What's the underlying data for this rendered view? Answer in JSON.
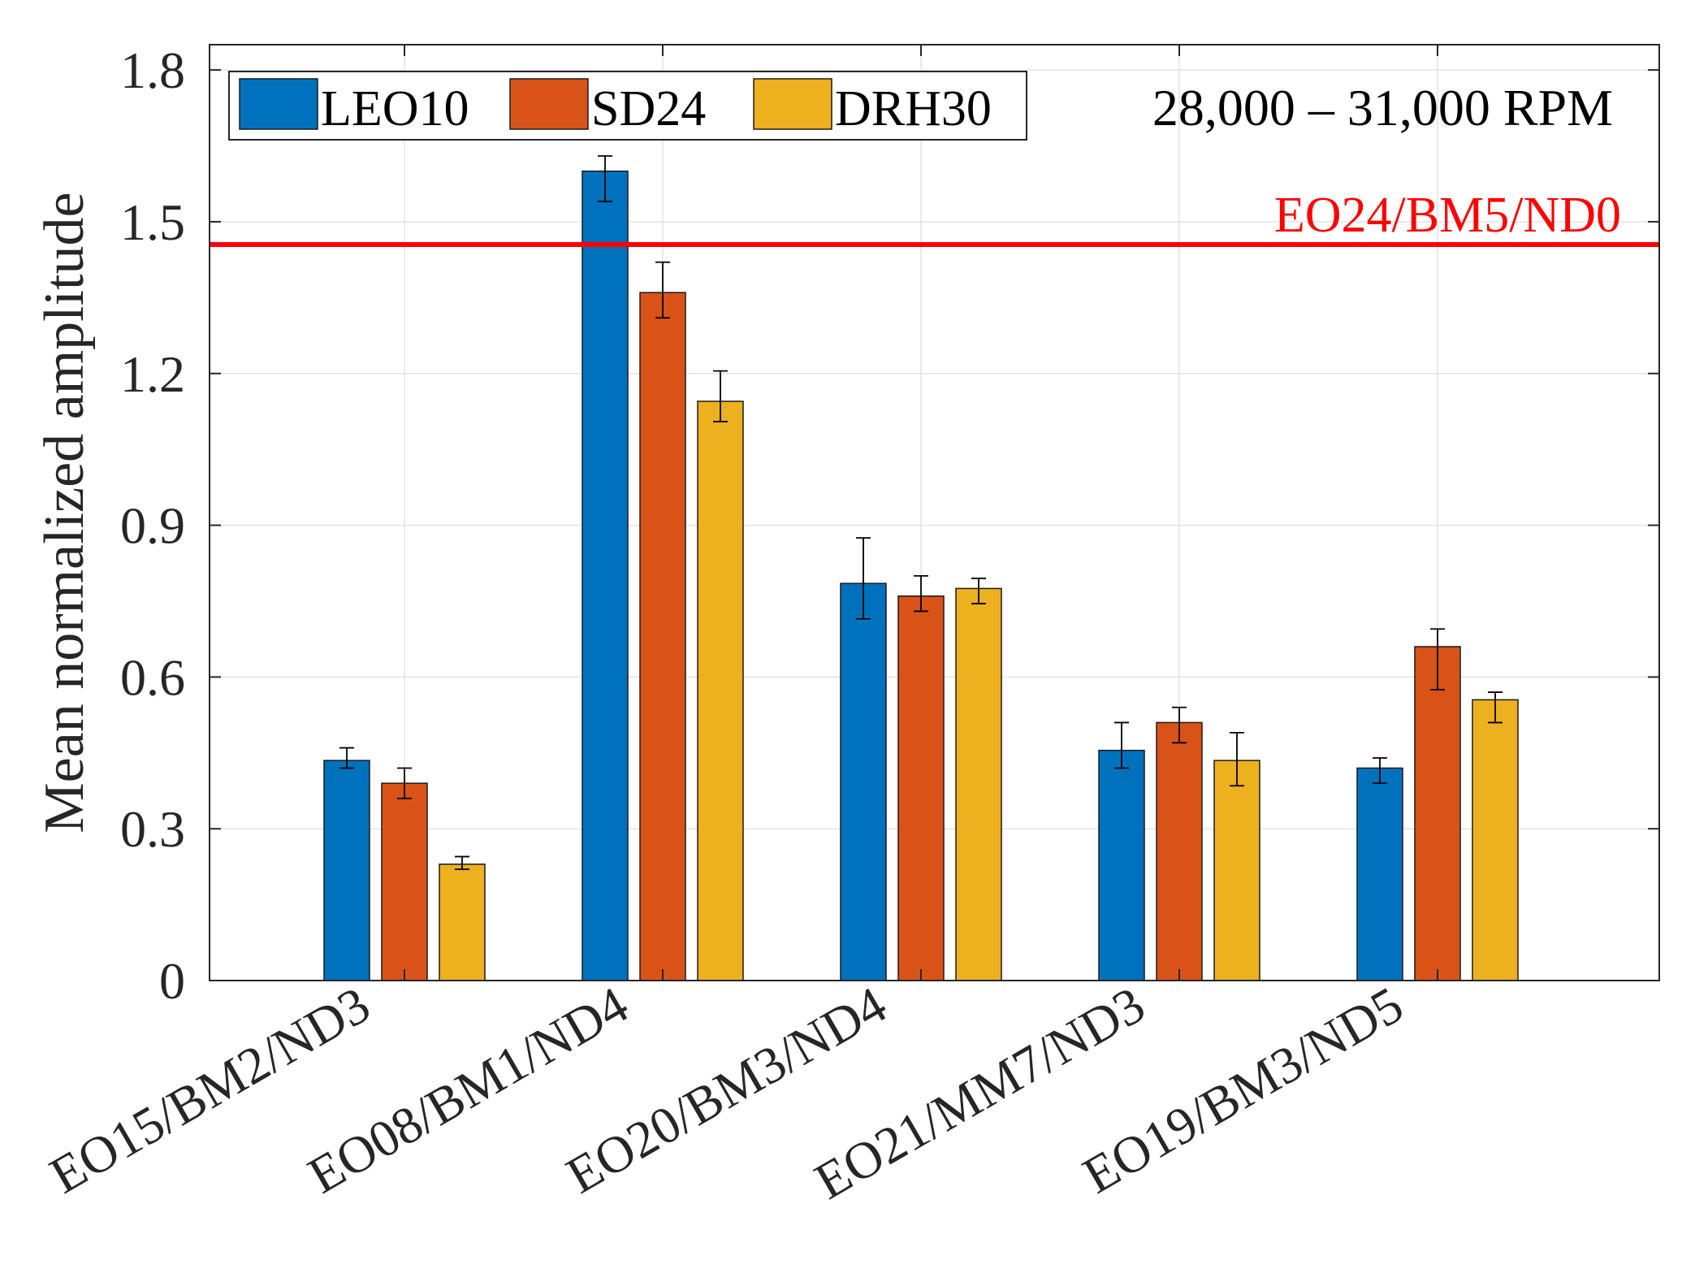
{
  "chart_data": {
    "type": "bar",
    "categories": [
      "EO15/BM2/ND3",
      "EO08/BM1/ND4",
      "EO20/BM3/ND4",
      "EO21/MM7/ND3",
      "EO19/BM3/ND5"
    ],
    "series": [
      {
        "name": "LEO10",
        "color": "#0072BD",
        "values": [
          0.435,
          1.6,
          0.785,
          0.455,
          0.42
        ],
        "err_low": [
          0.42,
          1.54,
          0.715,
          0.42,
          0.39
        ],
        "err_high": [
          0.46,
          1.63,
          0.875,
          0.51,
          0.44
        ]
      },
      {
        "name": "SD24",
        "color": "#D95319",
        "values": [
          0.39,
          1.36,
          0.76,
          0.51,
          0.66
        ],
        "err_low": [
          0.36,
          1.31,
          0.73,
          0.47,
          0.575
        ],
        "err_high": [
          0.42,
          1.42,
          0.8,
          0.54,
          0.695
        ]
      },
      {
        "name": "DRH30",
        "color": "#EDB120",
        "values": [
          0.23,
          1.145,
          0.775,
          0.435,
          0.555
        ],
        "err_low": [
          0.22,
          1.105,
          0.745,
          0.385,
          0.51
        ],
        "err_high": [
          0.245,
          1.205,
          0.795,
          0.49,
          0.57
        ]
      }
    ],
    "xlabel": "",
    "ylabel": "Mean normalized amplitude",
    "ylim": [
      0,
      1.85
    ],
    "yticks": [
      0,
      0.3,
      0.6,
      0.9,
      1.2,
      1.5,
      1.8
    ],
    "ytick_labels": [
      "0",
      "0.3",
      "0.6",
      "0.9",
      "1.2",
      "1.5",
      "1.8"
    ],
    "grid": true,
    "legend_placement": "top-left",
    "annotation": "28,000 – 31,000 RPM",
    "reference_line": {
      "value": 1.455,
      "label": "EO24/BM5/ND0",
      "color": "#FF0000"
    }
  }
}
